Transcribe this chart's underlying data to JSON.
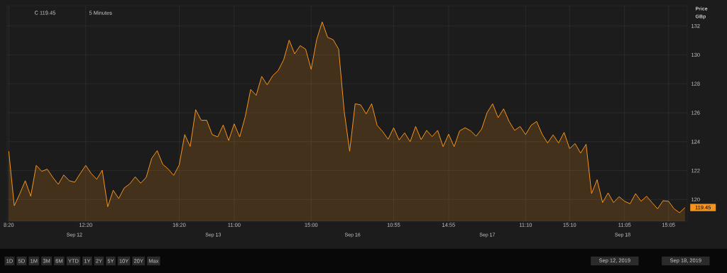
{
  "chart_data": {
    "type": "area",
    "ylabel": "Price GBp",
    "annotations": [
      "C 119.45",
      "5 Minutes",
      "1D",
      "5D",
      "1M",
      "3M",
      "6M",
      "YTD",
      "1Y",
      "2Y",
      "5Y",
      "10Y",
      "20Y",
      "Max",
      "Sep 12, 2019",
      "Sep 18, 2019",
      "Sep 12",
      "Sep 13",
      "Sep 16",
      "Sep 17",
      "Sep 18",
      "119.45"
    ],
    "categories": [
      "8:20",
      null,
      null,
      null,
      null,
      null,
      null,
      null,
      null,
      null,
      null,
      null,
      null,
      null,
      "12:20",
      null,
      null,
      null,
      null,
      null,
      null,
      null,
      null,
      null,
      null,
      null,
      null,
      null,
      null,
      null,
      null,
      "16:20",
      null,
      null,
      null,
      null,
      null,
      null,
      null,
      null,
      null,
      "11:00",
      null,
      null,
      null,
      null,
      null,
      null,
      null,
      null,
      null,
      null,
      null,
      null,
      null,
      "15:00",
      null,
      null,
      null,
      null,
      null,
      null,
      null,
      null,
      null,
      null,
      null,
      null,
      null,
      null,
      "10:55",
      null,
      null,
      null,
      null,
      null,
      null,
      null,
      null,
      null,
      "14:55",
      null,
      null,
      null,
      null,
      null,
      null,
      null,
      null,
      null,
      null,
      null,
      null,
      null,
      "11:10",
      null,
      null,
      null,
      null,
      null,
      null,
      null,
      "15:10",
      null,
      null,
      null,
      null,
      null,
      null,
      null,
      null,
      null,
      "11:05",
      null,
      null,
      null,
      null,
      null,
      null,
      null,
      "15:05",
      null,
      null,
      null
    ],
    "series": [
      {
        "color": "#f7941d",
        "values": [
          123.34,
          119.57,
          120.39,
          121.3,
          120.23,
          122.36,
          121.95,
          122.1,
          121.54,
          121.05,
          121.7,
          121.3,
          121.2,
          121.8,
          122.36,
          121.8,
          121.4,
          122.03,
          119.5,
          120.64,
          120.07,
          120.8,
          121.08,
          121.57,
          121.13,
          121.54,
          122.85,
          123.38,
          122.44,
          122.11,
          121.67,
          122.39,
          124.49,
          123.67,
          126.21,
          125.48,
          125.48,
          124.49,
          124.33,
          125.15,
          124.08,
          125.23,
          124.33,
          125.72,
          127.61,
          127.2,
          128.51,
          127.93,
          128.56,
          128.92,
          129.66,
          131.02,
          130.07,
          130.64,
          130.39,
          129.0,
          131.05,
          132.28,
          131.21,
          131.05,
          130.39,
          126.13,
          123.34,
          126.62,
          126.54,
          125.92,
          126.62,
          125.13,
          124.7,
          124.17,
          124.96,
          124.12,
          124.61,
          124.0,
          125.05,
          124.14,
          124.78,
          124.35,
          124.78,
          123.65,
          124.52,
          123.65,
          124.75,
          124.96,
          124.75,
          124.38,
          124.87,
          126.01,
          126.62,
          125.66,
          126.27,
          125.4,
          124.78,
          125.05,
          124.49,
          125.13,
          125.4,
          124.52,
          123.91,
          124.47,
          123.91,
          124.64,
          123.52,
          123.87,
          123.21,
          123.82,
          120.41,
          121.37,
          119.79,
          120.46,
          119.79,
          120.2,
          119.88,
          119.71,
          120.41,
          119.88,
          120.23,
          119.79,
          119.36,
          119.92,
          119.88,
          119.36,
          119.09,
          119.45
        ]
      }
    ],
    "ylim": [
      118.5,
      133.4
    ],
    "yticks": [
      120,
      122,
      124,
      126,
      128,
      130,
      132
    ],
    "grid": true,
    "marker": "none",
    "line_style": "solid"
  }
}
